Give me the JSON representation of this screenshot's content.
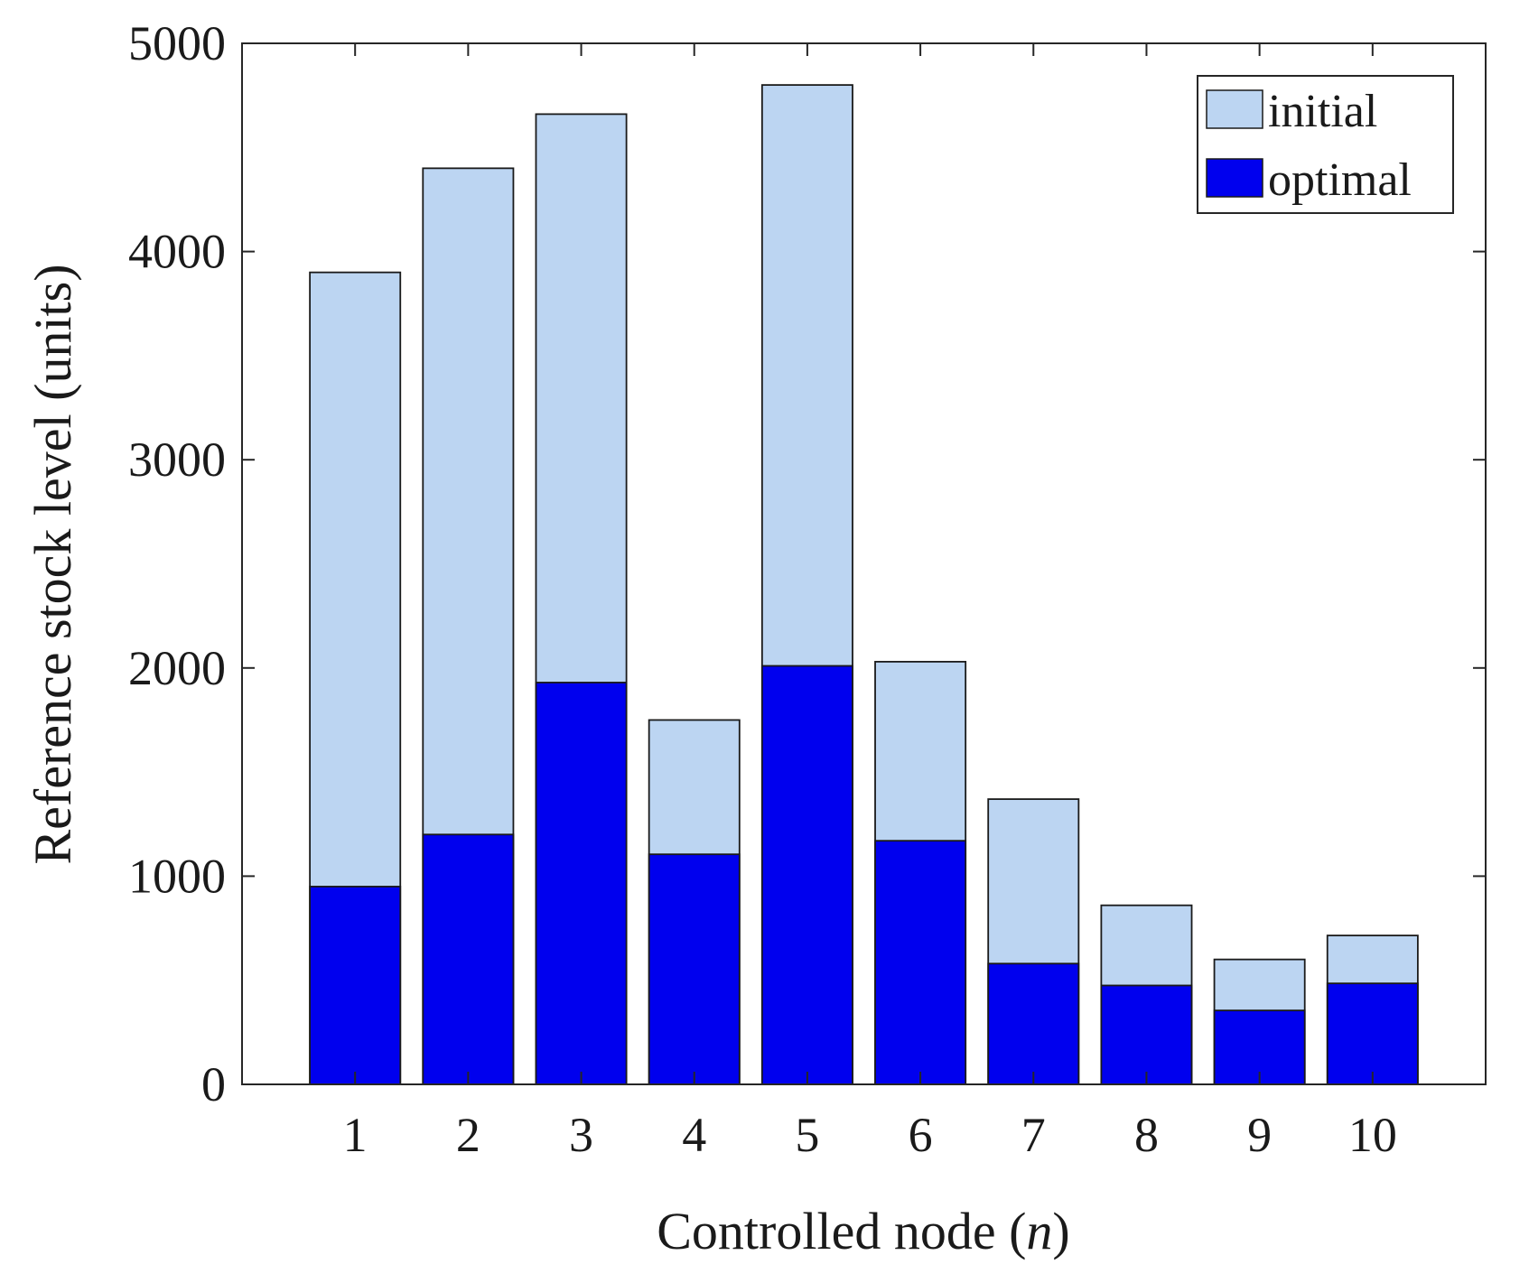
{
  "chart_data": {
    "type": "bar",
    "stacking": "overlay",
    "title": "",
    "xlabel": "Controlled node",
    "xlabel_var": "n",
    "ylabel": "Reference stock level (units)",
    "ylim": [
      0,
      5000
    ],
    "yticks": [
      0,
      1000,
      2000,
      3000,
      4000,
      5000
    ],
    "grid": false,
    "legend_position": "top-right",
    "categories": [
      "1",
      "2",
      "3",
      "4",
      "5",
      "6",
      "7",
      "8",
      "9",
      "10"
    ],
    "series": [
      {
        "name": "initial",
        "color": "#bcd5f2",
        "values": [
          3900,
          4400,
          4660,
          1750,
          4800,
          2030,
          1370,
          860,
          600,
          715
        ]
      },
      {
        "name": "optimal",
        "color": "#0000ee",
        "values": [
          950,
          1200,
          1930,
          1105,
          2010,
          1170,
          580,
          475,
          355,
          485
        ]
      }
    ]
  }
}
